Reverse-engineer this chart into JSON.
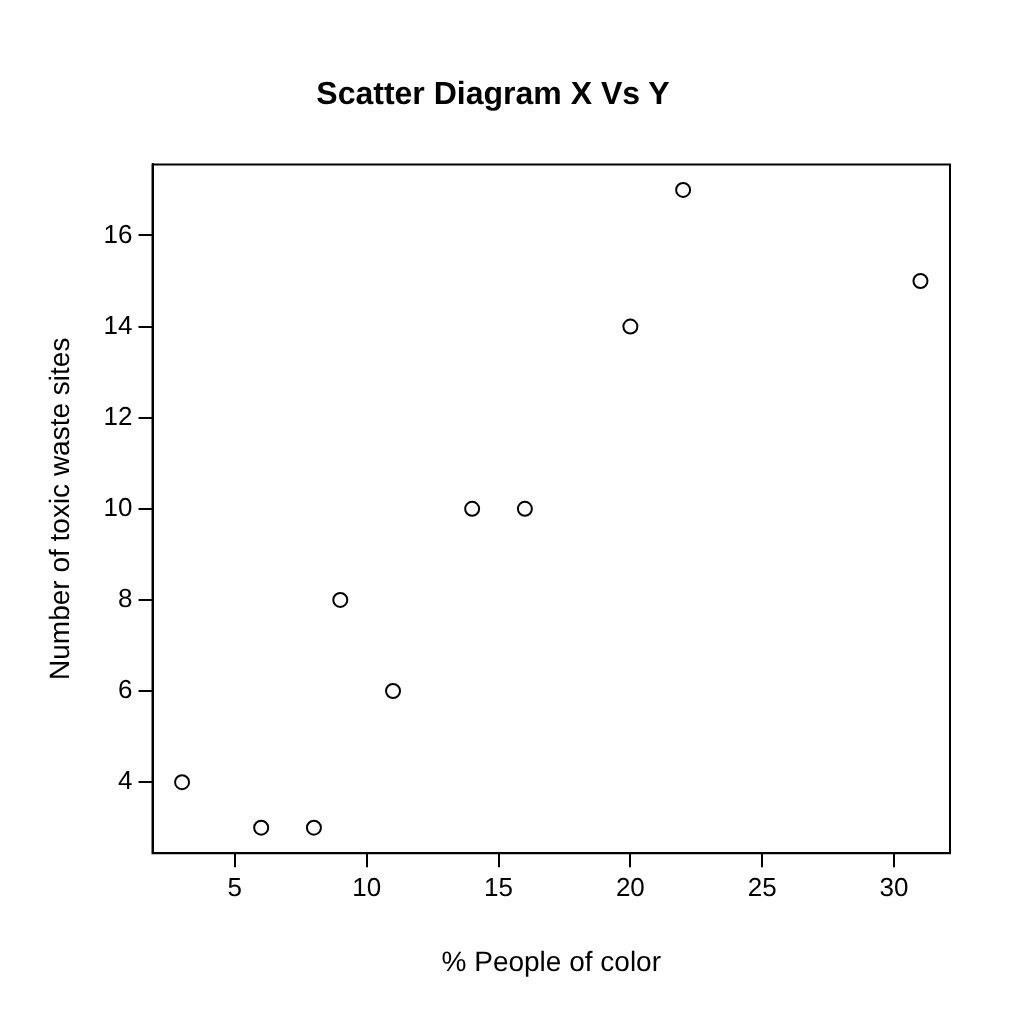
{
  "chart_data": {
    "type": "scatter",
    "title": "Scatter Diagram X Vs Y",
    "xlabel": "% People of color",
    "ylabel": "Number of toxic waste sites",
    "x": [
      3,
      6,
      8,
      9,
      11,
      14,
      16,
      20,
      22,
      31
    ],
    "values": [
      4,
      3,
      3,
      8,
      6,
      10,
      10,
      14,
      17,
      15
    ],
    "color": "#000000",
    "marker": "circle",
    "xlim": [
      1.88,
      32.12
    ],
    "xticks": [
      5,
      10,
      15,
      20,
      25,
      30
    ],
    "ylim": [
      2.44,
      17.56
    ],
    "yticks": [
      4,
      6,
      8,
      10,
      12,
      14,
      16
    ],
    "grid": false,
    "legend": false
  }
}
